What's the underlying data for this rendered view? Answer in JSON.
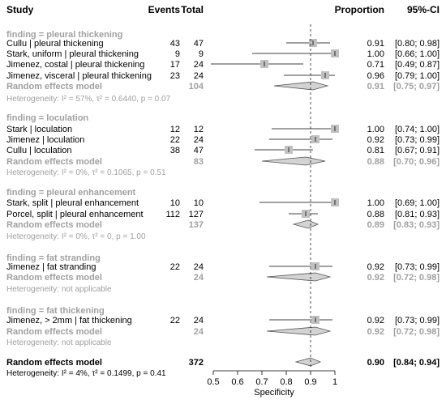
{
  "header": {
    "study": "Study",
    "events": "Events",
    "total": "Total",
    "proportion": "Proportion",
    "ci": "95%-CI"
  },
  "chart_data": {
    "type": "forest",
    "xlabel": "Specificity",
    "xlim": [
      0.5,
      1.0
    ],
    "x_ticks": [
      0.5,
      0.6,
      0.7,
      0.8,
      0.9,
      1
    ],
    "x_tick_labels": [
      "0.5",
      "0.6",
      "0.7",
      "0.8",
      "0.9",
      "1"
    ],
    "reference_line": 0.9,
    "colors": {
      "square": "#c0c0c0",
      "diamond": "#d3d3d3",
      "summary_text": "#a0a0a0",
      "hetero_text": "#a0a0a0"
    },
    "groups": [
      {
        "title": "finding = pleural thickening",
        "studies": [
          {
            "name": "Cullu | pleural thickening",
            "events": "43",
            "total": "47",
            "prop_text": "0.91",
            "ci_text": "[0.80; 0.98]",
            "est": 0.91,
            "lo": 0.8,
            "hi": 0.98
          },
          {
            "name": "Stark, uniform | pleural thickening",
            "events": "9",
            "total": "9",
            "prop_text": "1.00",
            "ci_text": "[0.66; 1.00]",
            "est": 1.0,
            "lo": 0.66,
            "hi": 1.0
          },
          {
            "name": "Jimenez, costal | pleural thickening",
            "events": "17",
            "total": "24",
            "prop_text": "0.71",
            "ci_text": "[0.49; 0.87]",
            "est": 0.71,
            "lo": 0.49,
            "hi": 0.87
          },
          {
            "name": "Jimenez, visceral | pleural thickening",
            "events": "23",
            "total": "24",
            "prop_text": "0.96",
            "ci_text": "[0.79; 1.00]",
            "est": 0.96,
            "lo": 0.79,
            "hi": 1.0
          }
        ],
        "model": {
          "label": "Random effects model",
          "total": "104",
          "prop_text": "0.91",
          "ci_text": "[0.75; 0.97]",
          "est": 0.91,
          "lo": 0.75,
          "hi": 0.97
        },
        "heterogeneity": "Heterogeneity: I² = 57%, τ² = 0.6440, p = 0.07"
      },
      {
        "title": "finding = loculation",
        "studies": [
          {
            "name": "Stark | loculation",
            "events": "12",
            "total": "12",
            "prop_text": "1.00",
            "ci_text": "[0.74; 1.00]",
            "est": 1.0,
            "lo": 0.74,
            "hi": 1.0
          },
          {
            "name": "Jimenez | loculation",
            "events": "22",
            "total": "24",
            "prop_text": "0.92",
            "ci_text": "[0.73; 0.99]",
            "est": 0.92,
            "lo": 0.73,
            "hi": 0.99
          },
          {
            "name": "Cullu | loculation",
            "events": "38",
            "total": "47",
            "prop_text": "0.81",
            "ci_text": "[0.67; 0.91]",
            "est": 0.81,
            "lo": 0.67,
            "hi": 0.91
          }
        ],
        "model": {
          "label": "Random effects model",
          "total": "83",
          "prop_text": "0.88",
          "ci_text": "[0.70; 0.96]",
          "est": 0.88,
          "lo": 0.7,
          "hi": 0.96
        },
        "heterogeneity": "Heterogeneity: I² = 0%, τ² = 0.1065, p = 0.51"
      },
      {
        "title": "finding = pleural enhancement",
        "studies": [
          {
            "name": "Stark, split | pleural enhancement",
            "events": "10",
            "total": "10",
            "prop_text": "1.00",
            "ci_text": "[0.69; 1.00]",
            "est": 1.0,
            "lo": 0.69,
            "hi": 1.0
          },
          {
            "name": "Porcel, split | pleural enhancement",
            "events": "112",
            "total": "127",
            "prop_text": "0.88",
            "ci_text": "[0.81; 0.93]",
            "est": 0.88,
            "lo": 0.81,
            "hi": 0.93
          }
        ],
        "model": {
          "label": "Random effects model",
          "total": "137",
          "prop_text": "0.89",
          "ci_text": "[0.83; 0.93]",
          "est": 0.89,
          "lo": 0.83,
          "hi": 0.93
        },
        "heterogeneity": "Heterogeneity: I² = 0%, τ² = 0, p = 1.00"
      },
      {
        "title": "finding = fat stranding",
        "studies": [
          {
            "name": "Jimenez | fat stranding",
            "events": "22",
            "total": "24",
            "prop_text": "0.92",
            "ci_text": "[0.73; 0.99]",
            "est": 0.92,
            "lo": 0.73,
            "hi": 0.99
          }
        ],
        "model": {
          "label": "Random effects model",
          "total": "24",
          "prop_text": "0.92",
          "ci_text": "[0.72; 0.98]",
          "est": 0.92,
          "lo": 0.72,
          "hi": 0.98
        },
        "heterogeneity": "Heterogeneity: not applicable"
      },
      {
        "title": "finding = fat thickening",
        "studies": [
          {
            "name": "Jimenez, > 2mm | fat thickening",
            "events": "22",
            "total": "24",
            "prop_text": "0.92",
            "ci_text": "[0.73; 0.99]",
            "est": 0.92,
            "lo": 0.73,
            "hi": 0.99
          }
        ],
        "model": {
          "label": "Random effects model",
          "total": "24",
          "prop_text": "0.92",
          "ci_text": "[0.72; 0.98]",
          "est": 0.92,
          "lo": 0.72,
          "hi": 0.98
        },
        "heterogeneity": "Heterogeneity: not applicable"
      }
    ],
    "overall": {
      "label": "Random effects model",
      "total": "372",
      "prop_text": "0.90",
      "ci_text": "[0.84; 0.94]",
      "est": 0.9,
      "lo": 0.84,
      "hi": 0.94,
      "heterogeneity": "Heterogeneity: I² = 4%, τ² = 0.1499, p = 0.41"
    }
  }
}
